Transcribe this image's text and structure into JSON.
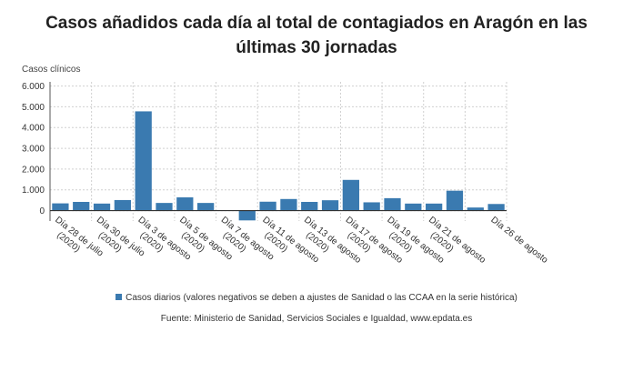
{
  "chart_data": {
    "type": "bar",
    "title_line1": "Casos añadidos cada día al total de contagiados en Aragón en las",
    "title_line2": "últimas 30 jornadas",
    "ylabel": "Casos clínicos",
    "ylim": [
      -500,
      6200
    ],
    "yticks": [
      0,
      1000,
      2000,
      3000,
      4000,
      5000,
      6000
    ],
    "ytick_labels": [
      "0",
      "1.000",
      "2.000",
      "3.000",
      "4.000",
      "5.000",
      "6.000"
    ],
    "grid": true,
    "legend_position": "bottom",
    "series": [
      {
        "name": "Casos diarios (valores negativos se deben a ajustes de Sanidad o las CCAA en la serie histórica)",
        "color": "#3a7ab0",
        "values": [
          350,
          420,
          340,
          510,
          4780,
          370,
          640,
          370,
          20,
          -470,
          430,
          560,
          420,
          500,
          1480,
          400,
          600,
          340,
          340,
          960,
          150,
          320
        ]
      }
    ],
    "xticks": [
      {
        "label": [
          "Día 28 de julio",
          "(2020)"
        ],
        "index": 0
      },
      {
        "label": [
          "Día 30 de julio",
          "(2020)"
        ],
        "index": 2
      },
      {
        "label": [
          "Día 3 de agosto",
          "(2020)"
        ],
        "index": 4
      },
      {
        "label": [
          "Día 5 de agosto",
          "(2020)"
        ],
        "index": 6
      },
      {
        "label": [
          "Día 7 de agosto",
          "(2020)"
        ],
        "index": 8
      },
      {
        "label": [
          "Día 11 de agosto",
          "(2020)"
        ],
        "index": 10
      },
      {
        "label": [
          "Día 13 de agosto",
          "(2020)"
        ],
        "index": 12
      },
      {
        "label": [
          "Día 17 de agosto",
          "(2020)"
        ],
        "index": 14
      },
      {
        "label": [
          "Día 19 de agosto",
          "(2020)"
        ],
        "index": 16
      },
      {
        "label": [
          "Día 21 de agosto",
          "(2020)"
        ],
        "index": 18
      },
      {
        "label": [
          "Día 26 de agosto"
        ],
        "index": 21
      }
    ],
    "source": "Fuente: Ministerio de Sanidad, Servicios Sociales e Igualdad, www.epdata.es"
  }
}
